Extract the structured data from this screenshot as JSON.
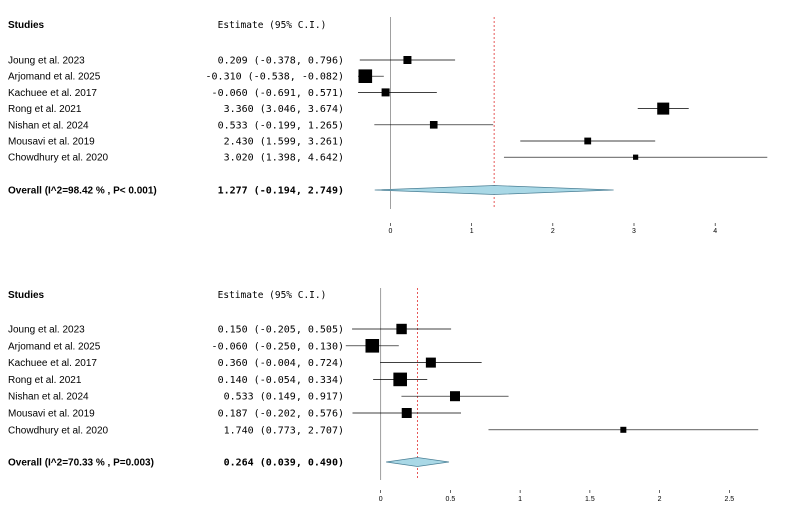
{
  "chart_data": [
    {
      "type": "forest",
      "header_studies": "Studies",
      "header_estimate": "Estimate (95% C.I.)",
      "xlim": [
        -0.4,
        4.7
      ],
      "ticks": [
        0,
        1,
        2,
        3,
        4
      ],
      "tick_labels": [
        "0",
        "1",
        "2",
        "3",
        "4"
      ],
      "pooled_line": 1.277,
      "studies": [
        {
          "name": "Joung et al. 2023",
          "est": 0.209,
          "lo": -0.378,
          "hi": 0.796,
          "ci_text": "0.209 (-0.378,  0.796)",
          "weight": 1.0
        },
        {
          "name": "Arjomand et al. 2025",
          "est": -0.31,
          "lo": -0.538,
          "hi": -0.082,
          "ci_text": "-0.310 (-0.538, -0.082)",
          "weight": 1.7
        },
        {
          "name": "Kachuee et al. 2017",
          "est": -0.06,
          "lo": -0.691,
          "hi": 0.571,
          "ci_text": "-0.060 (-0.691,  0.571)",
          "weight": 1.0
        },
        {
          "name": "Rong et al.  2021",
          "est": 3.36,
          "lo": 3.046,
          "hi": 3.674,
          "ci_text": "3.360 (3.046,  3.674)",
          "weight": 1.5
        },
        {
          "name": "Nishan et al. 2024",
          "est": 0.533,
          "lo": -0.199,
          "hi": 1.265,
          "ci_text": "0.533 (-0.199,  1.265)",
          "weight": 0.95
        },
        {
          "name": "Mousavi et al.  2019",
          "est": 2.43,
          "lo": 1.599,
          "hi": 3.261,
          "ci_text": "2.430 (1.599,  3.261)",
          "weight": 0.85
        },
        {
          "name": "Chowdhury et al. 2020",
          "est": 3.02,
          "lo": 1.398,
          "hi": 4.642,
          "ci_text": "3.020 (1.398,  4.642)",
          "weight": 0.65
        }
      ],
      "overall": {
        "label": "Overall (I^2=98.42 % , P< 0.001)",
        "est": 1.277,
        "lo": -0.194,
        "hi": 2.749,
        "ci_text": "1.277 (-0.194,  2.749)"
      }
    },
    {
      "type": "forest",
      "header_studies": "Studies",
      "header_estimate": "Estimate (95% C.I.)",
      "xlim": [
        -0.27,
        2.77
      ],
      "ticks": [
        0,
        0.5,
        1,
        1.5,
        2,
        2.5
      ],
      "tick_labels": [
        "0",
        "0.5",
        "1",
        "1.5",
        "2",
        "2.5"
      ],
      "pooled_line": 0.264,
      "studies": [
        {
          "name": "Joung et al. 2023",
          "est": 0.15,
          "lo": -0.205,
          "hi": 0.505,
          "ci_text": "0.150 (-0.205, 0.505)",
          "weight": 1.3
        },
        {
          "name": "Arjomand et al. 2025",
          "est": -0.06,
          "lo": -0.25,
          "hi": 0.13,
          "ci_text": "-0.060 (-0.250, 0.130)",
          "weight": 1.7
        },
        {
          "name": "Kachuee et al. 2017",
          "est": 0.36,
          "lo": -0.004,
          "hi": 0.724,
          "ci_text": "0.360 (-0.004, 0.724)",
          "weight": 1.25
        },
        {
          "name": "Rong et al.  2021",
          "est": 0.14,
          "lo": -0.054,
          "hi": 0.334,
          "ci_text": "0.140 (-0.054, 0.334)",
          "weight": 1.7
        },
        {
          "name": "Nishan et al. 2024",
          "est": 0.533,
          "lo": 0.149,
          "hi": 0.917,
          "ci_text": "0.533 (0.149, 0.917)",
          "weight": 1.25
        },
        {
          "name": "Mousavi et al.  2019",
          "est": 0.187,
          "lo": -0.202,
          "hi": 0.576,
          "ci_text": "0.187 (-0.202, 0.576)",
          "weight": 1.25
        },
        {
          "name": "Chowdhury et al. 2020",
          "est": 1.74,
          "lo": 0.773,
          "hi": 2.707,
          "ci_text": "1.740 (0.773, 2.707)",
          "weight": 0.75
        }
      ],
      "overall": {
        "label": "Overall (I^2=70.33 % , P=0.003)",
        "est": 0.264,
        "lo": 0.039,
        "hi": 0.49,
        "ci_text": "0.264 (0.039, 0.490)"
      }
    }
  ]
}
